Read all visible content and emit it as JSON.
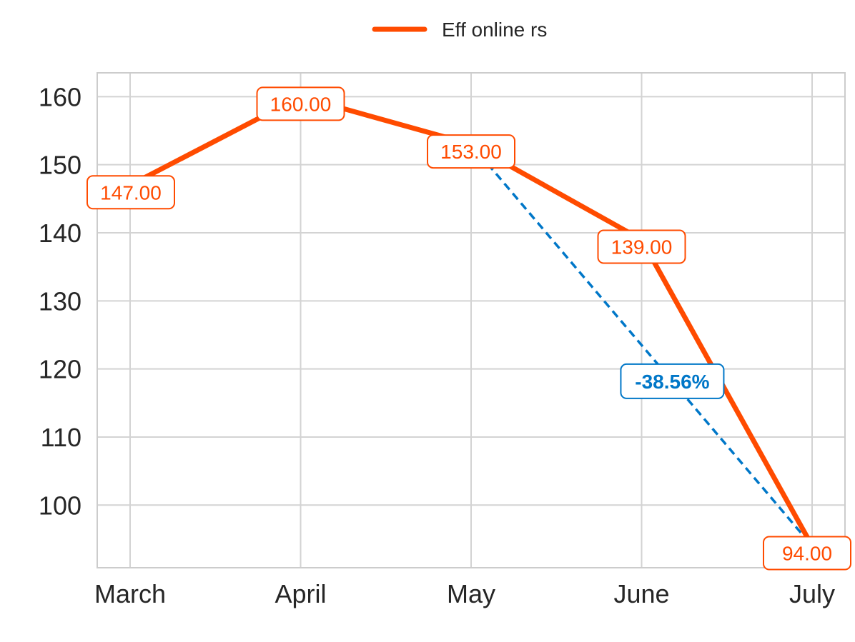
{
  "chart_data": {
    "type": "line",
    "categories": [
      "March",
      "April",
      "May",
      "June",
      "July"
    ],
    "series": [
      {
        "name": "Eff online rs",
        "values": [
          147.0,
          160.0,
          153.0,
          139.0,
          94.0
        ],
        "color": "#FF4B00"
      }
    ],
    "data_labels": [
      "147.00",
      "160.00",
      "153.00",
      "139.00",
      "94.00"
    ],
    "yticks": [
      100,
      110,
      120,
      130,
      140,
      150,
      160
    ],
    "ylim": [
      90.8,
      163.5
    ],
    "grid": true,
    "legend": {
      "position": "top-center",
      "label": "Eff online rs"
    },
    "annotation": {
      "text": "-38.56%",
      "from_category": "May",
      "to_category": "July",
      "from_value": 153.0,
      "to_value": 94.0,
      "color": "#0077C8",
      "style": "dashed"
    }
  }
}
